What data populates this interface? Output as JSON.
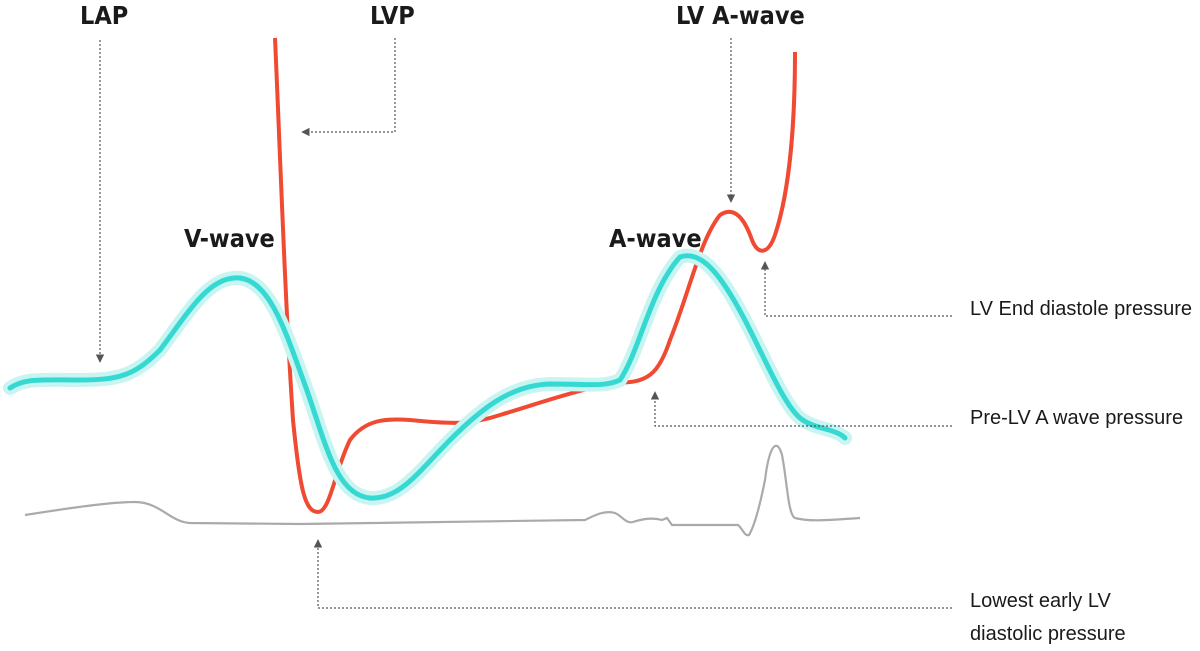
{
  "labels": {
    "lap": "LAP",
    "lvp": "LVP",
    "lv_a_wave": "LV A-wave",
    "v_wave": "V-wave",
    "a_wave": "A-wave",
    "lv_end_diastole": "LV End diastole pressure",
    "pre_lv_a_wave": "Pre-LV A wave pressure",
    "lowest_early_lv": [
      "Lowest early LV",
      "diastolic pressure"
    ]
  }
}
